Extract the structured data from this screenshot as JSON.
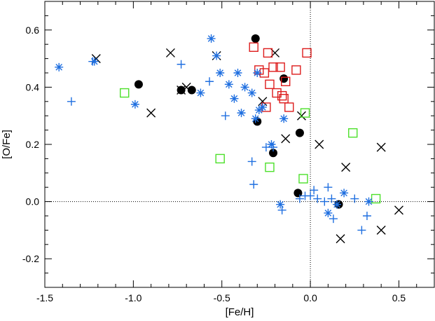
{
  "chart_data": {
    "type": "scatter",
    "title": "",
    "xlabel": "[Fe/H]",
    "ylabel": "[O/Fe]",
    "xlim": [
      -1.5,
      0.7
    ],
    "ylim": [
      -0.3,
      0.7
    ],
    "x_ticks": [
      {
        "value": -1.5,
        "label": "-1.5"
      },
      {
        "value": -1.0,
        "label": "-1.0"
      },
      {
        "value": -0.5,
        "label": "-0.5"
      },
      {
        "value": 0.0,
        "label": "0.0"
      },
      {
        "value": 0.5,
        "label": "0.5"
      }
    ],
    "y_ticks": [
      {
        "value": -0.2,
        "label": "-0.2"
      },
      {
        "value": 0.0,
        "label": "0.0"
      },
      {
        "value": 0.2,
        "label": "0.2"
      },
      {
        "value": 0.4,
        "label": "0.4"
      },
      {
        "value": 0.6,
        "label": "0.6"
      }
    ],
    "reference_lines": {
      "x": 0.0,
      "y": 0.0,
      "style": "dotted"
    },
    "grid": false,
    "legend": "none",
    "series": [
      {
        "marker": "filled-circle",
        "color": "#000000",
        "x": [
          -0.97,
          -0.73,
          -0.67,
          -0.31,
          -0.3,
          -0.15,
          -0.21,
          -0.06,
          -0.07,
          0.16
        ],
        "y": [
          0.41,
          0.39,
          0.39,
          0.57,
          0.28,
          0.43,
          0.17,
          0.24,
          0.03,
          -0.01
        ]
      },
      {
        "marker": "x-cross",
        "color": "#000000",
        "x": [
          -1.21,
          -0.79,
          -0.9,
          -0.73,
          -0.7,
          -0.53,
          -0.27,
          -0.2,
          -0.14,
          -0.05,
          0.05,
          0.2,
          0.4,
          0.17,
          0.5,
          0.4
        ],
        "y": [
          0.5,
          0.52,
          0.31,
          0.39,
          0.4,
          0.51,
          0.35,
          0.52,
          0.22,
          0.3,
          0.2,
          0.12,
          0.19,
          -0.13,
          -0.03,
          -0.1
        ]
      },
      {
        "marker": "open-square",
        "color": "#dd1c1c",
        "x": [
          -0.32,
          -0.24,
          -0.29,
          -0.21,
          -0.17,
          -0.26,
          -0.08,
          -0.02,
          -0.23,
          -0.14,
          -0.19,
          -0.16,
          -0.15,
          -0.25,
          -0.12
        ],
        "y": [
          0.54,
          0.52,
          0.46,
          0.47,
          0.47,
          0.45,
          0.46,
          0.52,
          0.41,
          0.42,
          0.38,
          0.37,
          0.36,
          0.33,
          0.33
        ]
      },
      {
        "marker": "open-square",
        "color": "#4ce02a",
        "x": [
          -1.05,
          -0.51,
          -0.23,
          -0.03,
          -0.04,
          0.24,
          0.37
        ],
        "y": [
          0.38,
          0.15,
          0.12,
          0.31,
          0.08,
          0.24,
          0.01
        ]
      },
      {
        "marker": "asterisk",
        "color": "#1f6fe0",
        "x": [
          -1.42,
          -1.22,
          -0.99,
          -0.56,
          -0.51,
          -0.41,
          -0.46,
          -0.37,
          -0.43,
          -0.33,
          -0.39,
          -0.3,
          -0.29,
          -0.62,
          -0.31,
          -0.27,
          -0.22,
          -0.15,
          -0.17,
          0.19,
          0.33,
          0.1,
          0.15,
          -0.53
        ],
        "y": [
          0.47,
          0.49,
          0.34,
          0.57,
          0.45,
          0.45,
          0.41,
          0.4,
          0.36,
          0.38,
          0.31,
          0.45,
          0.32,
          0.38,
          0.29,
          0.33,
          0.2,
          0.29,
          -0.01,
          0.03,
          0.0,
          -0.04,
          -0.01,
          0.51
        ]
      },
      {
        "marker": "plus",
        "color": "#1f6fe0",
        "x": [
          -1.35,
          -1.23,
          -0.73,
          -0.57,
          -0.48,
          -0.33,
          -0.32,
          -0.25,
          -0.21,
          -0.16,
          -0.06,
          -0.03,
          0.02,
          0.04,
          0.08,
          0.13,
          0.12,
          0.25,
          0.29,
          0.32,
          0.0,
          0.1
        ],
        "y": [
          0.35,
          0.49,
          0.48,
          0.42,
          0.3,
          0.14,
          0.06,
          0.19,
          0.19,
          -0.03,
          0.01,
          0.02,
          0.04,
          0.01,
          0.0,
          -0.06,
          0.01,
          0.01,
          -0.1,
          -0.05,
          0.02,
          0.05
        ]
      }
    ]
  }
}
